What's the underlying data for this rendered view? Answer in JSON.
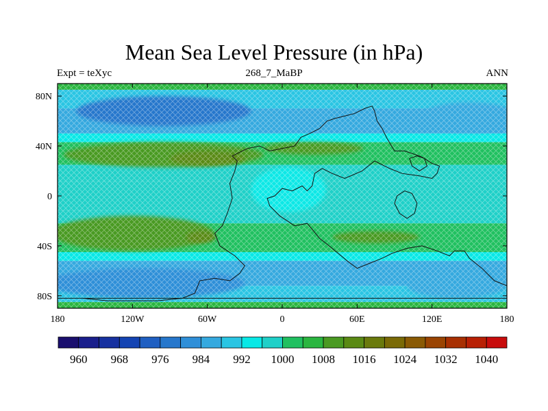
{
  "header": {
    "title": "Mean Sea Level Pressure (in hPa)",
    "left": "Expt = teXyc",
    "center": "268_7_MaBP",
    "right": "ANN"
  },
  "chart_data": {
    "type": "heatmap",
    "title": "Mean Sea Level Pressure (in hPa)",
    "xlim": [
      -180,
      180
    ],
    "ylim": [
      -90,
      90
    ],
    "x_ticks": [
      {
        "value": -180,
        "label": "180"
      },
      {
        "value": -120,
        "label": "120W"
      },
      {
        "value": -60,
        "label": "60W"
      },
      {
        "value": 0,
        "label": "0"
      },
      {
        "value": 60,
        "label": "60E"
      },
      {
        "value": 120,
        "label": "120E"
      },
      {
        "value": 180,
        "label": "180"
      }
    ],
    "y_ticks": [
      {
        "value": 80,
        "label": "80N"
      },
      {
        "value": 40,
        "label": "40N"
      },
      {
        "value": 0,
        "label": "0"
      },
      {
        "value": -40,
        "label": "40S"
      },
      {
        "value": -80,
        "label": "80S"
      }
    ],
    "colorbar": {
      "levels": [
        956,
        960,
        964,
        968,
        972,
        976,
        980,
        984,
        988,
        992,
        996,
        1000,
        1004,
        1008,
        1012,
        1016,
        1020,
        1024,
        1028,
        1032,
        1036,
        1040,
        1044
      ],
      "colors": [
        "#1a0f6e",
        "#1a1f8c",
        "#1731a0",
        "#1444b3",
        "#1f5fc2",
        "#2677cc",
        "#2f8fd8",
        "#35a9df",
        "#2ac5e3",
        "#08e8e6",
        "#1fd0c8",
        "#20c060",
        "#2ab640",
        "#4a9a22",
        "#5a8a14",
        "#6a7a0c",
        "#7a6a06",
        "#8a5a04",
        "#9a4402",
        "#a83002",
        "#b82004",
        "#c80c0c"
      ],
      "labels": [
        {
          "value": 960,
          "label": "960"
        },
        {
          "value": 968,
          "label": "968"
        },
        {
          "value": 976,
          "label": "976"
        },
        {
          "value": 984,
          "label": "984"
        },
        {
          "value": 992,
          "label": "992"
        },
        {
          "value": 1000,
          "label": "1000"
        },
        {
          "value": 1008,
          "label": "1008"
        },
        {
          "value": 1016,
          "label": "1016"
        },
        {
          "value": 1024,
          "label": "1024"
        },
        {
          "value": 1032,
          "label": "1032"
        },
        {
          "value": 1040,
          "label": "1040"
        }
      ]
    },
    "zonal_bands": [
      {
        "lat_from": 90,
        "lat_to": 85,
        "value": 1005
      },
      {
        "lat_from": 85,
        "lat_to": 70,
        "value": 990
      },
      {
        "lat_from": 70,
        "lat_to": 50,
        "value": 984
      },
      {
        "lat_from": 50,
        "lat_to": 43,
        "value": 994
      },
      {
        "lat_from": 43,
        "lat_to": 25,
        "value": 1003
      },
      {
        "lat_from": 25,
        "lat_to": 12,
        "value": 998
      },
      {
        "lat_from": 12,
        "lat_to": -12,
        "value": 996
      },
      {
        "lat_from": -12,
        "lat_to": -22,
        "value": 998
      },
      {
        "lat_from": -22,
        "lat_to": -45,
        "value": 1003
      },
      {
        "lat_from": -45,
        "lat_to": -52,
        "value": 994
      },
      {
        "lat_from": -52,
        "lat_to": -72,
        "value": 984
      },
      {
        "lat_from": -72,
        "lat_to": -85,
        "value": 990
      },
      {
        "lat_from": -85,
        "lat_to": -90,
        "value": 1005
      }
    ],
    "pressure_cells": [
      {
        "name": "north-subpolar-low",
        "lon": -95,
        "lat": 68,
        "rx": 70,
        "ry": 12,
        "value": 976
      },
      {
        "name": "north-pacific-low",
        "lon": 150,
        "lat": 63,
        "rx": 40,
        "ry": 12,
        "value": 984
      },
      {
        "name": "north-subtropical-high",
        "lon": -95,
        "lat": 33,
        "rx": 80,
        "ry": 10,
        "value": 1008
      },
      {
        "name": "north-high-core",
        "lon": -60,
        "lat": 30,
        "rx": 30,
        "ry": 6,
        "value": 1012
      },
      {
        "name": "tethys-high-north",
        "lon": 25,
        "lat": 38,
        "rx": 40,
        "ry": 5,
        "value": 1008
      },
      {
        "name": "south-subtropical-high",
        "lon": -120,
        "lat": -30,
        "rx": 65,
        "ry": 14,
        "value": 1008
      },
      {
        "name": "south-high-core",
        "lon": -65,
        "lat": -33,
        "rx": 12,
        "ry": 5,
        "value": 1012
      },
      {
        "name": "tethys-high-south",
        "lon": 75,
        "lat": -33,
        "rx": 35,
        "ry": 5,
        "value": 1008
      },
      {
        "name": "equatorial-low",
        "lon": 5,
        "lat": 5,
        "rx": 30,
        "ry": 18,
        "value": 992
      },
      {
        "name": "south-subpolar-low",
        "lon": -110,
        "lat": -70,
        "rx": 80,
        "ry": 12,
        "value": 980
      },
      {
        "name": "south-low-east",
        "lon": 140,
        "lat": -72,
        "rx": 40,
        "ry": 10,
        "value": 984
      }
    ],
    "landmass_outlines": [
      {
        "name": "pangea",
        "points": [
          [
            -40,
            32
          ],
          [
            -28,
            38
          ],
          [
            -18,
            40
          ],
          [
            -10,
            36
          ],
          [
            0,
            38
          ],
          [
            10,
            40
          ],
          [
            15,
            47
          ],
          [
            22,
            50
          ],
          [
            30,
            54
          ],
          [
            36,
            60
          ],
          [
            42,
            62
          ],
          [
            50,
            64
          ],
          [
            58,
            66
          ],
          [
            66,
            70
          ],
          [
            72,
            72
          ],
          [
            74,
            68
          ],
          [
            76,
            60
          ],
          [
            80,
            54
          ],
          [
            84,
            46
          ],
          [
            90,
            36
          ],
          [
            98,
            36
          ],
          [
            110,
            32
          ],
          [
            114,
            30
          ],
          [
            120,
            26
          ],
          [
            126,
            24
          ],
          [
            124,
            18
          ],
          [
            120,
            14
          ],
          [
            110,
            16
          ],
          [
            96,
            18
          ],
          [
            86,
            22
          ],
          [
            74,
            28
          ],
          [
            64,
            20
          ],
          [
            50,
            14
          ],
          [
            40,
            18
          ],
          [
            32,
            22
          ],
          [
            26,
            18
          ],
          [
            24,
            8
          ],
          [
            20,
            4
          ],
          [
            16,
            8
          ],
          [
            8,
            4
          ],
          [
            0,
            6
          ],
          [
            -6,
            0
          ],
          [
            -12,
            -2
          ],
          [
            -10,
            -8
          ],
          [
            -2,
            -16
          ],
          [
            10,
            -24
          ],
          [
            20,
            -22
          ],
          [
            30,
            -34
          ],
          [
            40,
            -42
          ],
          [
            52,
            -52
          ],
          [
            60,
            -58
          ],
          [
            70,
            -54
          ],
          [
            80,
            -50
          ],
          [
            88,
            -46
          ],
          [
            100,
            -42
          ],
          [
            112,
            -40
          ],
          [
            124,
            -44
          ],
          [
            134,
            -48
          ],
          [
            138,
            -44
          ],
          [
            146,
            -44
          ],
          [
            150,
            -50
          ],
          [
            160,
            -58
          ],
          [
            164,
            -62
          ],
          [
            170,
            -68
          ],
          [
            180,
            -72
          ],
          [
            180,
            -82
          ],
          [
            -180,
            -82
          ],
          [
            -160,
            -82
          ],
          [
            -140,
            -84
          ],
          [
            -120,
            -84
          ],
          [
            -100,
            -84
          ],
          [
            -80,
            -82
          ],
          [
            -70,
            -78
          ],
          [
            -66,
            -68
          ],
          [
            -54,
            -66
          ],
          [
            -42,
            -68
          ],
          [
            -34,
            -62
          ],
          [
            -30,
            -56
          ],
          [
            -38,
            -48
          ],
          [
            -50,
            -40
          ],
          [
            -54,
            -30
          ],
          [
            -48,
            -24
          ],
          [
            -44,
            -14
          ],
          [
            -40,
            -2
          ],
          [
            -42,
            10
          ],
          [
            -38,
            20
          ],
          [
            -36,
            28
          ]
        ]
      },
      {
        "name": "east-island-equator",
        "points": [
          [
            92,
            0
          ],
          [
            98,
            4
          ],
          [
            104,
            2
          ],
          [
            108,
            -6
          ],
          [
            106,
            -14
          ],
          [
            100,
            -18
          ],
          [
            94,
            -14
          ],
          [
            90,
            -6
          ]
        ]
      },
      {
        "name": "east-island-north",
        "points": [
          [
            102,
            30
          ],
          [
            108,
            32
          ],
          [
            114,
            30
          ],
          [
            116,
            24
          ],
          [
            110,
            20
          ],
          [
            104,
            24
          ]
        ]
      }
    ]
  }
}
